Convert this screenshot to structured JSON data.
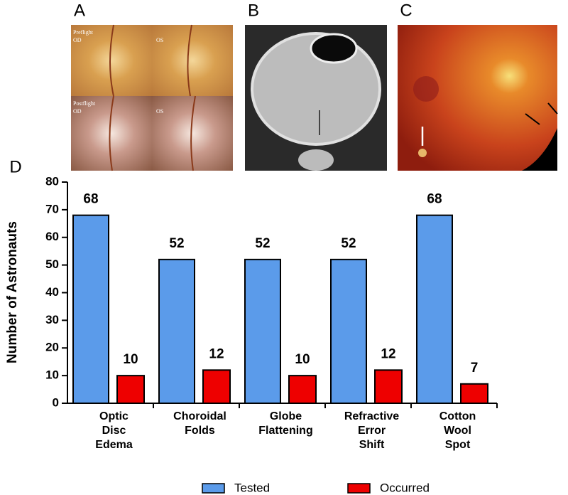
{
  "panel_labels": [
    "A",
    "B",
    "C"
  ],
  "panel_a_texts": [
    "Preflight",
    "OD",
    "OS",
    "Postflight",
    "OD",
    "OS"
  ],
  "chart_data": {
    "type": "bar",
    "panel_label": "D",
    "ylabel": "Number of Astronauts",
    "categories": [
      [
        "Optic",
        "Disc",
        "Edema"
      ],
      [
        "Choroidal",
        "Folds"
      ],
      [
        "Globe",
        "Flattening"
      ],
      [
        "Refractive",
        "Error",
        "Shift"
      ],
      [
        "Cotton",
        "Wool",
        "Spot"
      ]
    ],
    "series": [
      {
        "name": "Tested",
        "color": "#5b9bea",
        "values": [
          68,
          52,
          52,
          52,
          68
        ]
      },
      {
        "name": "Occurred",
        "color": "#ee0000",
        "values": [
          10,
          12,
          10,
          12,
          7
        ]
      }
    ],
    "ylim": [
      0,
      80
    ],
    "yticks": [
      0,
      10,
      20,
      30,
      40,
      50,
      60,
      70,
      80
    ],
    "legend": "bottom"
  }
}
